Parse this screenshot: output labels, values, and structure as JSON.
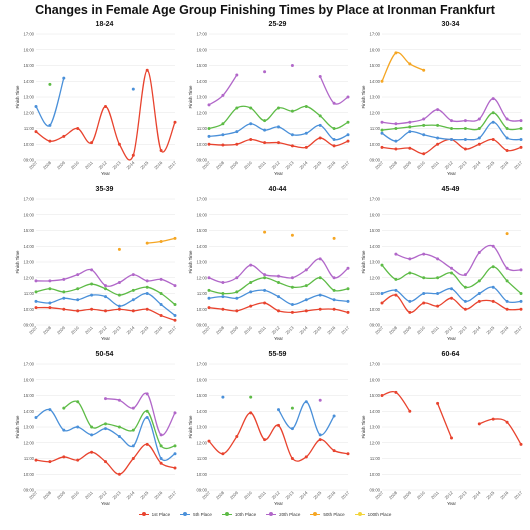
{
  "title": "Changes in Female Age Group Finishing Times by Place at Ironman Frankfurt",
  "chart_data": {
    "type": "line",
    "title": "Changes in Female Age Group Finishing Times by Place at Ironman Frankfurt",
    "xlabel": "Year",
    "ylabel": "Finish Time",
    "years": [
      2007,
      2008,
      2009,
      2010,
      2011,
      2012,
      2013,
      2014,
      2015,
      2016,
      2017
    ],
    "y_ticks": [
      "09:00",
      "10:00",
      "11:00",
      "12:00",
      "13:00",
      "14:00",
      "15:00",
      "16:00",
      "17:00"
    ],
    "ylim_hours": [
      9,
      17
    ],
    "legend_position": "bottom",
    "grid": true,
    "series_names": [
      "1st Place",
      "5th Place",
      "10th Place",
      "20th Place",
      "50th Place",
      "100th Place"
    ],
    "series_colors": [
      "#e8432e",
      "#4a90d9",
      "#5dbb46",
      "#b167c9",
      "#f5a623",
      "#f2d43b"
    ],
    "panels": [
      {
        "name": "18-24",
        "series": [
          {
            "name": "1st Place",
            "values": [
              10.8,
              10.2,
              10.5,
              11.0,
              10.1,
              12.4,
              10.0,
              9.3,
              14.7,
              9.6,
              11.4
            ]
          },
          {
            "name": "5th Place",
            "values": [
              12.4,
              11.2,
              14.2,
              null,
              null,
              null,
              null,
              13.5,
              null,
              null,
              null
            ]
          },
          {
            "name": "10th Place",
            "values": [
              null,
              13.8,
              null,
              null,
              null,
              null,
              null,
              null,
              null,
              null,
              null
            ]
          }
        ]
      },
      {
        "name": "25-29",
        "series": [
          {
            "name": "1st Place",
            "values": [
              10.0,
              9.95,
              10.0,
              10.3,
              10.1,
              10.1,
              9.9,
              9.8,
              10.4,
              9.9,
              10.2
            ]
          },
          {
            "name": "5th Place",
            "values": [
              10.5,
              10.6,
              10.8,
              11.3,
              10.9,
              11.1,
              10.6,
              10.7,
              11.2,
              10.3,
              10.6
            ]
          },
          {
            "name": "10th Place",
            "values": [
              11.0,
              11.3,
              12.3,
              12.3,
              11.5,
              12.3,
              12.1,
              12.4,
              11.8,
              11.0,
              11.4
            ]
          },
          {
            "name": "20th Place",
            "values": [
              12.5,
              13.1,
              14.4,
              null,
              14.6,
              null,
              15.0,
              null,
              14.3,
              12.6,
              13.0
            ]
          }
        ]
      },
      {
        "name": "30-34",
        "series": [
          {
            "name": "1st Place",
            "values": [
              9.8,
              9.7,
              9.75,
              9.4,
              10.0,
              10.3,
              9.7,
              10.0,
              10.3,
              9.6,
              9.8
            ]
          },
          {
            "name": "5th Place",
            "values": [
              10.7,
              10.2,
              10.8,
              10.6,
              10.4,
              10.3,
              10.3,
              10.4,
              11.4,
              10.4,
              10.3
            ]
          },
          {
            "name": "10th Place",
            "values": [
              10.9,
              11.0,
              11.1,
              11.2,
              11.2,
              11.0,
              11.0,
              11.0,
              12.0,
              11.0,
              11.0
            ]
          },
          {
            "name": "20th Place",
            "values": [
              11.4,
              11.3,
              11.4,
              11.6,
              12.2,
              11.5,
              11.5,
              11.6,
              12.9,
              11.6,
              11.5
            ]
          },
          {
            "name": "50th Place",
            "values": [
              14.0,
              15.8,
              15.1,
              14.7,
              null,
              null,
              null,
              null,
              null,
              null,
              null
            ]
          }
        ]
      },
      {
        "name": "35-39",
        "series": [
          {
            "name": "1st Place",
            "values": [
              10.1,
              10.1,
              10.0,
              9.9,
              10.0,
              9.9,
              10.0,
              9.9,
              10.0,
              9.6,
              9.3
            ]
          },
          {
            "name": "5th Place",
            "values": [
              10.5,
              10.4,
              10.7,
              10.6,
              10.9,
              10.8,
              10.2,
              10.6,
              11.0,
              10.3,
              9.6
            ]
          },
          {
            "name": "10th Place",
            "values": [
              11.1,
              11.3,
              11.1,
              11.3,
              11.6,
              11.3,
              10.9,
              11.2,
              11.4,
              11.0,
              10.3
            ]
          },
          {
            "name": "20th Place",
            "values": [
              11.8,
              11.8,
              11.9,
              12.2,
              12.5,
              11.5,
              11.7,
              12.2,
              11.8,
              11.9,
              11.5
            ]
          },
          {
            "name": "50th Place",
            "values": [
              null,
              null,
              null,
              null,
              null,
              null,
              13.8,
              null,
              14.2,
              14.3,
              14.5
            ]
          }
        ]
      },
      {
        "name": "40-44",
        "series": [
          {
            "name": "1st Place",
            "values": [
              10.1,
              10.0,
              9.9,
              10.2,
              10.4,
              9.9,
              9.8,
              9.9,
              10.0,
              10.0,
              9.8
            ]
          },
          {
            "name": "5th Place",
            "values": [
              10.7,
              10.8,
              10.7,
              11.1,
              11.2,
              10.8,
              10.3,
              10.6,
              10.9,
              10.6,
              10.5
            ]
          },
          {
            "name": "10th Place",
            "values": [
              11.2,
              11.0,
              11.1,
              11.7,
              12.0,
              11.7,
              11.4,
              11.5,
              12.0,
              11.2,
              11.3
            ]
          },
          {
            "name": "20th Place",
            "values": [
              12.0,
              11.7,
              12.0,
              12.8,
              12.2,
              12.1,
              12.0,
              12.5,
              13.2,
              12.0,
              12.6
            ]
          },
          {
            "name": "50th Place",
            "values": [
              null,
              null,
              null,
              null,
              14.9,
              null,
              14.7,
              null,
              null,
              14.5,
              null
            ]
          }
        ]
      },
      {
        "name": "45-49",
        "series": [
          {
            "name": "1st Place",
            "values": [
              10.4,
              10.9,
              9.8,
              10.4,
              10.2,
              10.7,
              10.0,
              10.5,
              10.5,
              10.0,
              10.0
            ]
          },
          {
            "name": "5th Place",
            "values": [
              11.0,
              11.2,
              10.5,
              11.0,
              11.0,
              11.3,
              10.5,
              11.0,
              11.4,
              10.5,
              10.5
            ]
          },
          {
            "name": "10th Place",
            "values": [
              12.8,
              11.9,
              12.3,
              12.0,
              12.0,
              12.3,
              11.4,
              11.8,
              12.7,
              11.8,
              11.0
            ]
          },
          {
            "name": "20th Place",
            "values": [
              null,
              13.5,
              13.2,
              13.5,
              13.2,
              12.6,
              12.2,
              13.6,
              14.0,
              12.6,
              12.5
            ]
          },
          {
            "name": "50th Place",
            "values": [
              null,
              null,
              null,
              null,
              null,
              null,
              null,
              null,
              null,
              14.8,
              null
            ]
          }
        ]
      },
      {
        "name": "50-54",
        "series": [
          {
            "name": "1st Place",
            "values": [
              10.9,
              10.8,
              11.1,
              10.9,
              11.4,
              10.8,
              10.0,
              11.0,
              11.9,
              10.7,
              10.4
            ]
          },
          {
            "name": "5th Place",
            "values": [
              13.6,
              14.1,
              12.8,
              13.0,
              12.5,
              12.9,
              12.4,
              11.8,
              13.6,
              11.0,
              11.3
            ]
          },
          {
            "name": "10th Place",
            "values": [
              null,
              null,
              14.2,
              14.6,
              13.0,
              13.2,
              13.0,
              12.8,
              14.0,
              11.8,
              11.8
            ]
          },
          {
            "name": "20th Place",
            "values": [
              null,
              null,
              null,
              null,
              null,
              14.8,
              14.7,
              14.2,
              15.1,
              12.5,
              13.9
            ]
          }
        ]
      },
      {
        "name": "55-59",
        "series": [
          {
            "name": "1st Place",
            "values": [
              12.1,
              11.3,
              12.4,
              13.9,
              12.2,
              13.1,
              11.0,
              11.1,
              12.2,
              11.5,
              11.3
            ]
          },
          {
            "name": "5th Place",
            "values": [
              null,
              14.9,
              null,
              null,
              null,
              14.1,
              12.9,
              14.6,
              12.5,
              13.7,
              null
            ]
          },
          {
            "name": "10th Place",
            "values": [
              null,
              null,
              null,
              14.9,
              null,
              null,
              14.2,
              null,
              null,
              null,
              null
            ]
          },
          {
            "name": "20th Place",
            "values": [
              null,
              null,
              null,
              null,
              null,
              null,
              null,
              null,
              14.7,
              null,
              null
            ]
          }
        ]
      },
      {
        "name": "60-64",
        "series": [
          {
            "name": "1st Place",
            "values": [
              15.0,
              15.2,
              14.0,
              null,
              14.5,
              12.3,
              null,
              13.2,
              13.5,
              13.3,
              11.9
            ]
          }
        ]
      }
    ]
  }
}
